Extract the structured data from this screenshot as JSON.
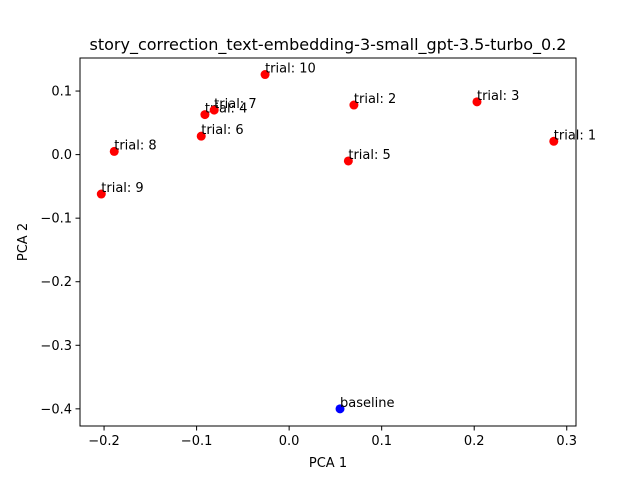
{
  "chart_data": {
    "type": "scatter",
    "title": "story_correction_text-embedding-3-small_gpt-3.5-turbo_0.2",
    "xlabel": "PCA 1",
    "ylabel": "PCA 2",
    "xlim": [
      -0.226,
      0.31
    ],
    "ylim": [
      -0.427,
      0.152
    ],
    "xticks": [
      {
        "value": -0.2,
        "label": "−0.2"
      },
      {
        "value": -0.1,
        "label": "−0.1"
      },
      {
        "value": 0.0,
        "label": "0.0"
      },
      {
        "value": 0.1,
        "label": "0.1"
      },
      {
        "value": 0.2,
        "label": "0.2"
      },
      {
        "value": 0.3,
        "label": "0.3"
      }
    ],
    "yticks": [
      {
        "value": 0.1,
        "label": "0.1"
      },
      {
        "value": 0.0,
        "label": "0.0"
      },
      {
        "value": -0.1,
        "label": "−0.1"
      },
      {
        "value": -0.2,
        "label": "−0.2"
      },
      {
        "value": -0.3,
        "label": "−0.3"
      },
      {
        "value": -0.4,
        "label": "−0.4"
      }
    ],
    "grid": false,
    "points": [
      {
        "label": "trial: 1",
        "x": 0.286,
        "y": 0.021,
        "color": "#ff0000"
      },
      {
        "label": "trial: 2",
        "x": 0.07,
        "y": 0.078,
        "color": "#ff0000"
      },
      {
        "label": "trial: 3",
        "x": 0.203,
        "y": 0.083,
        "color": "#ff0000"
      },
      {
        "label": "trial: 4",
        "x": -0.091,
        "y": 0.063,
        "color": "#ff0000"
      },
      {
        "label": "trial: 5",
        "x": 0.064,
        "y": -0.01,
        "color": "#ff0000"
      },
      {
        "label": "trial: 6",
        "x": -0.095,
        "y": 0.029,
        "color": "#ff0000"
      },
      {
        "label": "trial: 7",
        "x": -0.081,
        "y": 0.07,
        "color": "#ff0000"
      },
      {
        "label": "trial: 8",
        "x": -0.189,
        "y": 0.005,
        "color": "#ff0000"
      },
      {
        "label": "trial: 9",
        "x": -0.203,
        "y": -0.062,
        "color": "#ff0000"
      },
      {
        "label": "trial: 10",
        "x": -0.026,
        "y": 0.126,
        "color": "#ff0000"
      },
      {
        "label": "baseline",
        "x": 0.055,
        "y": -0.4,
        "color": "#0000ff"
      }
    ]
  }
}
